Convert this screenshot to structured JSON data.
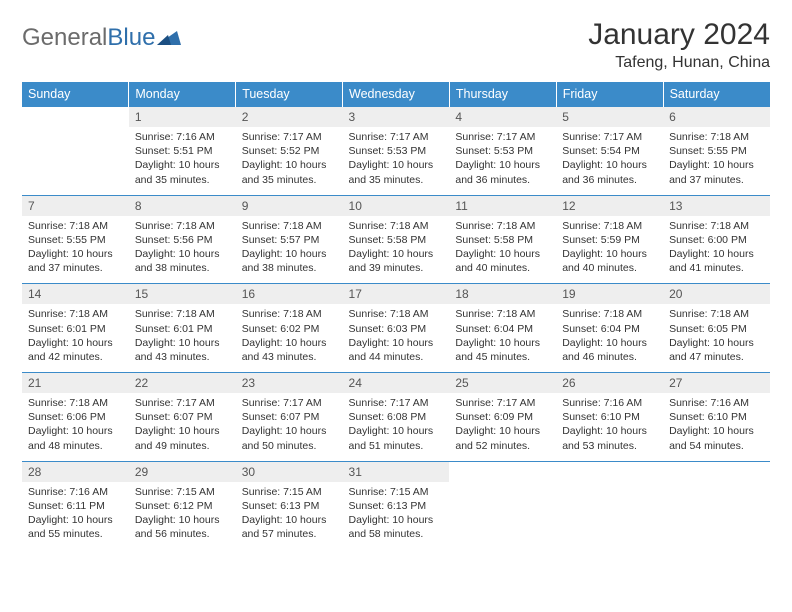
{
  "logo": {
    "part1": "General",
    "part2": "Blue"
  },
  "title": "January 2024",
  "location": "Tafeng, Hunan, China",
  "dayNames": [
    "Sunday",
    "Monday",
    "Tuesday",
    "Wednesday",
    "Thursday",
    "Friday",
    "Saturday"
  ],
  "colors": {
    "headerBg": "#3b8bc9",
    "headerText": "#ffffff",
    "dayNumBg": "#eeeeee",
    "bodyText": "#333333",
    "accentLine": "#3b8bc9",
    "logoGray": "#6b6b6b",
    "logoBlue": "#2f6fab",
    "pageBg": "#ffffff"
  },
  "weeks": [
    [
      null,
      {
        "n": "1",
        "sr": "Sunrise: 7:16 AM",
        "ss": "Sunset: 5:51 PM",
        "d1": "Daylight: 10 hours",
        "d2": "and 35 minutes."
      },
      {
        "n": "2",
        "sr": "Sunrise: 7:17 AM",
        "ss": "Sunset: 5:52 PM",
        "d1": "Daylight: 10 hours",
        "d2": "and 35 minutes."
      },
      {
        "n": "3",
        "sr": "Sunrise: 7:17 AM",
        "ss": "Sunset: 5:53 PM",
        "d1": "Daylight: 10 hours",
        "d2": "and 35 minutes."
      },
      {
        "n": "4",
        "sr": "Sunrise: 7:17 AM",
        "ss": "Sunset: 5:53 PM",
        "d1": "Daylight: 10 hours",
        "d2": "and 36 minutes."
      },
      {
        "n": "5",
        "sr": "Sunrise: 7:17 AM",
        "ss": "Sunset: 5:54 PM",
        "d1": "Daylight: 10 hours",
        "d2": "and 36 minutes."
      },
      {
        "n": "6",
        "sr": "Sunrise: 7:18 AM",
        "ss": "Sunset: 5:55 PM",
        "d1": "Daylight: 10 hours",
        "d2": "and 37 minutes."
      }
    ],
    [
      {
        "n": "7",
        "sr": "Sunrise: 7:18 AM",
        "ss": "Sunset: 5:55 PM",
        "d1": "Daylight: 10 hours",
        "d2": "and 37 minutes."
      },
      {
        "n": "8",
        "sr": "Sunrise: 7:18 AM",
        "ss": "Sunset: 5:56 PM",
        "d1": "Daylight: 10 hours",
        "d2": "and 38 minutes."
      },
      {
        "n": "9",
        "sr": "Sunrise: 7:18 AM",
        "ss": "Sunset: 5:57 PM",
        "d1": "Daylight: 10 hours",
        "d2": "and 38 minutes."
      },
      {
        "n": "10",
        "sr": "Sunrise: 7:18 AM",
        "ss": "Sunset: 5:58 PM",
        "d1": "Daylight: 10 hours",
        "d2": "and 39 minutes."
      },
      {
        "n": "11",
        "sr": "Sunrise: 7:18 AM",
        "ss": "Sunset: 5:58 PM",
        "d1": "Daylight: 10 hours",
        "d2": "and 40 minutes."
      },
      {
        "n": "12",
        "sr": "Sunrise: 7:18 AM",
        "ss": "Sunset: 5:59 PM",
        "d1": "Daylight: 10 hours",
        "d2": "and 40 minutes."
      },
      {
        "n": "13",
        "sr": "Sunrise: 7:18 AM",
        "ss": "Sunset: 6:00 PM",
        "d1": "Daylight: 10 hours",
        "d2": "and 41 minutes."
      }
    ],
    [
      {
        "n": "14",
        "sr": "Sunrise: 7:18 AM",
        "ss": "Sunset: 6:01 PM",
        "d1": "Daylight: 10 hours",
        "d2": "and 42 minutes."
      },
      {
        "n": "15",
        "sr": "Sunrise: 7:18 AM",
        "ss": "Sunset: 6:01 PM",
        "d1": "Daylight: 10 hours",
        "d2": "and 43 minutes."
      },
      {
        "n": "16",
        "sr": "Sunrise: 7:18 AM",
        "ss": "Sunset: 6:02 PM",
        "d1": "Daylight: 10 hours",
        "d2": "and 43 minutes."
      },
      {
        "n": "17",
        "sr": "Sunrise: 7:18 AM",
        "ss": "Sunset: 6:03 PM",
        "d1": "Daylight: 10 hours",
        "d2": "and 44 minutes."
      },
      {
        "n": "18",
        "sr": "Sunrise: 7:18 AM",
        "ss": "Sunset: 6:04 PM",
        "d1": "Daylight: 10 hours",
        "d2": "and 45 minutes."
      },
      {
        "n": "19",
        "sr": "Sunrise: 7:18 AM",
        "ss": "Sunset: 6:04 PM",
        "d1": "Daylight: 10 hours",
        "d2": "and 46 minutes."
      },
      {
        "n": "20",
        "sr": "Sunrise: 7:18 AM",
        "ss": "Sunset: 6:05 PM",
        "d1": "Daylight: 10 hours",
        "d2": "and 47 minutes."
      }
    ],
    [
      {
        "n": "21",
        "sr": "Sunrise: 7:18 AM",
        "ss": "Sunset: 6:06 PM",
        "d1": "Daylight: 10 hours",
        "d2": "and 48 minutes."
      },
      {
        "n": "22",
        "sr": "Sunrise: 7:17 AM",
        "ss": "Sunset: 6:07 PM",
        "d1": "Daylight: 10 hours",
        "d2": "and 49 minutes."
      },
      {
        "n": "23",
        "sr": "Sunrise: 7:17 AM",
        "ss": "Sunset: 6:07 PM",
        "d1": "Daylight: 10 hours",
        "d2": "and 50 minutes."
      },
      {
        "n": "24",
        "sr": "Sunrise: 7:17 AM",
        "ss": "Sunset: 6:08 PM",
        "d1": "Daylight: 10 hours",
        "d2": "and 51 minutes."
      },
      {
        "n": "25",
        "sr": "Sunrise: 7:17 AM",
        "ss": "Sunset: 6:09 PM",
        "d1": "Daylight: 10 hours",
        "d2": "and 52 minutes."
      },
      {
        "n": "26",
        "sr": "Sunrise: 7:16 AM",
        "ss": "Sunset: 6:10 PM",
        "d1": "Daylight: 10 hours",
        "d2": "and 53 minutes."
      },
      {
        "n": "27",
        "sr": "Sunrise: 7:16 AM",
        "ss": "Sunset: 6:10 PM",
        "d1": "Daylight: 10 hours",
        "d2": "and 54 minutes."
      }
    ],
    [
      {
        "n": "28",
        "sr": "Sunrise: 7:16 AM",
        "ss": "Sunset: 6:11 PM",
        "d1": "Daylight: 10 hours",
        "d2": "and 55 minutes."
      },
      {
        "n": "29",
        "sr": "Sunrise: 7:15 AM",
        "ss": "Sunset: 6:12 PM",
        "d1": "Daylight: 10 hours",
        "d2": "and 56 minutes."
      },
      {
        "n": "30",
        "sr": "Sunrise: 7:15 AM",
        "ss": "Sunset: 6:13 PM",
        "d1": "Daylight: 10 hours",
        "d2": "and 57 minutes."
      },
      {
        "n": "31",
        "sr": "Sunrise: 7:15 AM",
        "ss": "Sunset: 6:13 PM",
        "d1": "Daylight: 10 hours",
        "d2": "and 58 minutes."
      },
      null,
      null,
      null
    ]
  ]
}
